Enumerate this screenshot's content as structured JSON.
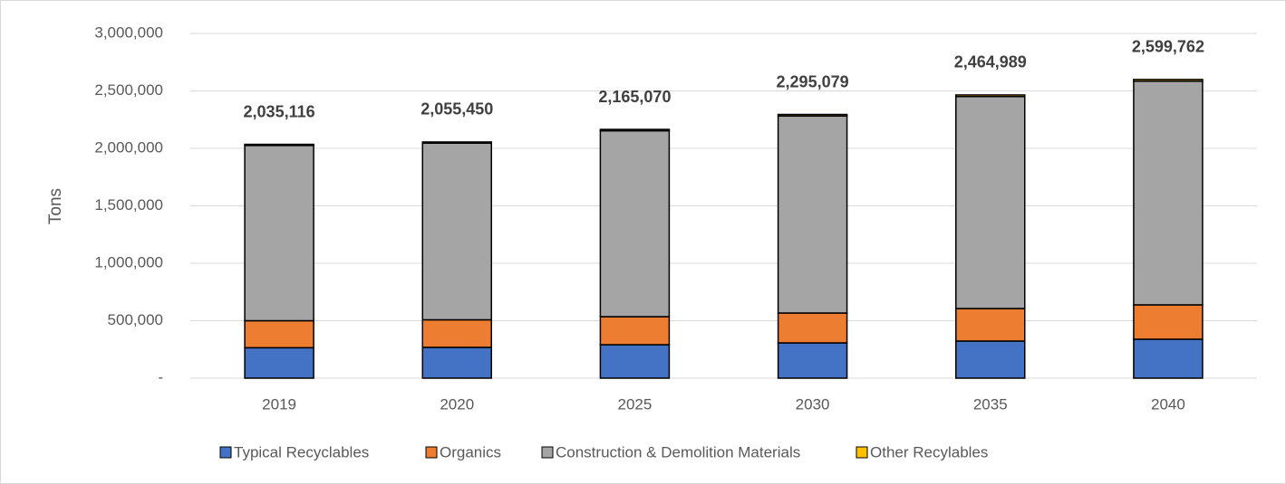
{
  "chart_data": {
    "type": "stacked_bar",
    "y_label": "Tons",
    "categories": [
      "2019",
      "2020",
      "2025",
      "2030",
      "2035",
      "2040"
    ],
    "series": [
      {
        "name": "Typical Recyclables",
        "color": "#4472c4",
        "values": [
          265000,
          268000,
          291000,
          307000,
          323000,
          339000
        ]
      },
      {
        "name": "Organics",
        "color": "#ed7d31",
        "values": [
          235000,
          240000,
          244000,
          260000,
          283000,
          299000
        ]
      },
      {
        "name": "Construction & Demolition Materials",
        "color": "#a5a5a5",
        "values": [
          1525116,
          1537450,
          1618070,
          1715079,
          1844989,
          1946762
        ]
      },
      {
        "name": "Other Recylables",
        "color": "#ffc000",
        "values": [
          10000,
          10000,
          12000,
          13000,
          14000,
          15000
        ]
      }
    ],
    "totals": [
      2035116,
      2055450,
      2165070,
      2295079,
      2464989,
      2599762
    ],
    "total_labels": [
      "2,035,116",
      "2,055,450",
      "2,165,070",
      "2,295,079",
      "2,464,989",
      "2,599,762"
    ],
    "ylim": [
      0,
      3000000
    ],
    "yticks": [
      {
        "value": 0,
        "label": "-"
      },
      {
        "value": 500000,
        "label": "500,000"
      },
      {
        "value": 1000000,
        "label": "1,000,000"
      },
      {
        "value": 1500000,
        "label": "1,500,000"
      },
      {
        "value": 2000000,
        "label": "2,000,000"
      },
      {
        "value": 2500000,
        "label": "2,500,000"
      },
      {
        "value": 3000000,
        "label": "3,000,000"
      }
    ],
    "grid": true,
    "legend": "bottom"
  }
}
